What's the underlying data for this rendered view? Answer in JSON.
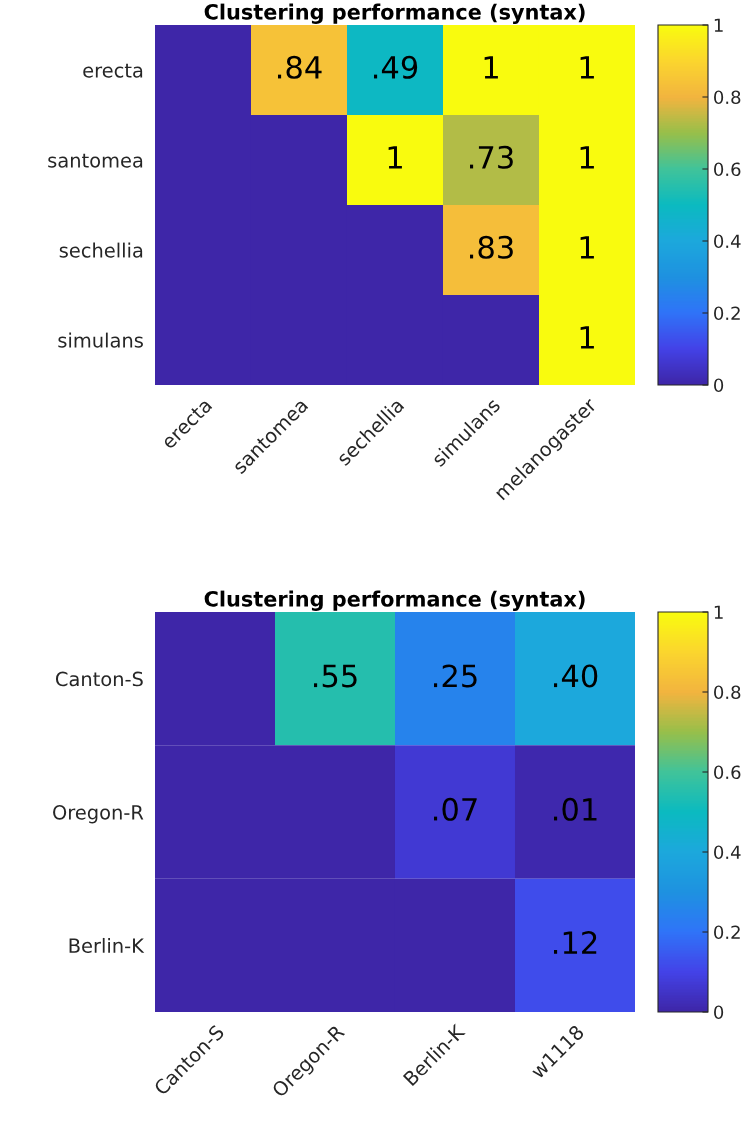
{
  "chart_data": [
    {
      "type": "heatmap",
      "title": "Clustering performance (syntax)",
      "categories": [
        "erecta",
        "santomea",
        "sechellia",
        "simulans",
        "melanogaster"
      ],
      "y_categories": [
        "erecta",
        "santomea",
        "sechellia",
        "simulans"
      ],
      "cells": [
        [
          0,
          0.84,
          0.49,
          1,
          1
        ],
        [
          0,
          0,
          1,
          0.73,
          1
        ],
        [
          0,
          0,
          0,
          0.83,
          1
        ],
        [
          0,
          0,
          0,
          0,
          1
        ]
      ],
      "cell_labels": [
        [
          null,
          ".84",
          ".49",
          "1",
          "1"
        ],
        [
          null,
          null,
          "1",
          ".73",
          "1"
        ],
        [
          null,
          null,
          null,
          ".83",
          "1"
        ],
        [
          null,
          null,
          null,
          null,
          "1"
        ]
      ],
      "clim": [
        0,
        1
      ],
      "cticks": [
        0,
        0.2,
        0.4,
        0.6,
        0.8,
        1
      ]
    },
    {
      "type": "heatmap",
      "title": "Clustering performance (syntax)",
      "categories": [
        "Canton-S",
        "Oregon-R",
        "Berlin-K",
        "w1118"
      ],
      "y_categories": [
        "Canton-S",
        "Oregon-R",
        "Berlin-K"
      ],
      "cells": [
        [
          0,
          0.55,
          0.25,
          0.4
        ],
        [
          0,
          0,
          0.07,
          0.01
        ],
        [
          0,
          0,
          0,
          0.12
        ]
      ],
      "cell_labels": [
        [
          null,
          ".55",
          ".25",
          ".40"
        ],
        [
          null,
          null,
          ".07",
          ".01"
        ],
        [
          null,
          null,
          null,
          ".12"
        ]
      ],
      "clim": [
        0,
        1
      ],
      "cticks": [
        0,
        0.2,
        0.4,
        0.6,
        0.8,
        1
      ]
    }
  ]
}
